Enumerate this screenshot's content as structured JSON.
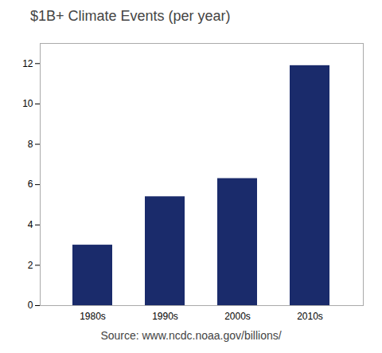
{
  "chart_data": {
    "type": "bar",
    "title": "$1B+ Climate Events (per year)",
    "caption": "Source: www.ncdc.noaa.gov/billions/",
    "categories": [
      "1980s",
      "1990s",
      "2000s",
      "2010s"
    ],
    "values": [
      3.0,
      5.4,
      6.3,
      11.9
    ],
    "color": "#1a2b6b",
    "ylim": [
      0,
      13
    ],
    "yticks": [
      0,
      2,
      4,
      6,
      8,
      10,
      12
    ],
    "grid": false
  }
}
